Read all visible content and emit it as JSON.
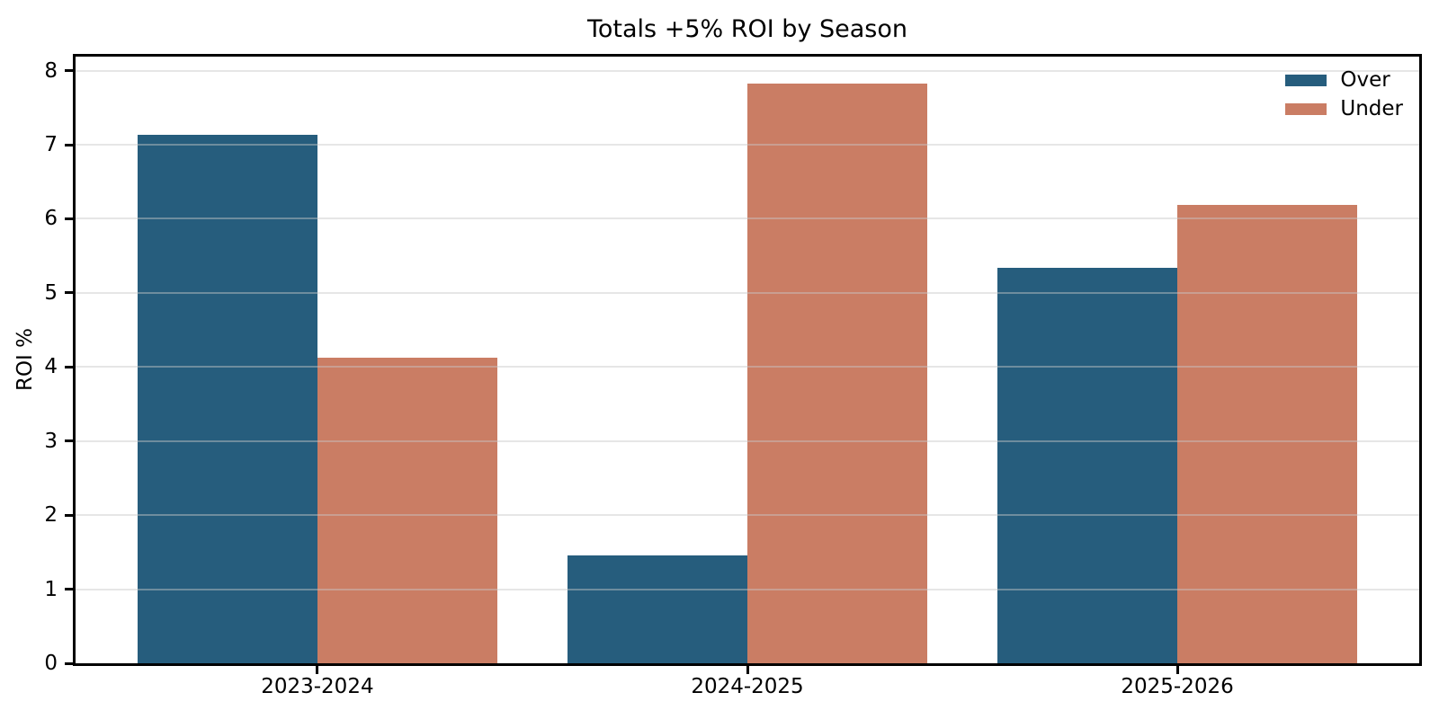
{
  "chart_data": {
    "type": "bar",
    "title": "Totals +5% ROI by Season",
    "xlabel": "",
    "ylabel": "ROI %",
    "categories": [
      "2023-2024",
      "2024-2025",
      "2025-2026"
    ],
    "series": [
      {
        "name": "Over",
        "color": "#265d7d",
        "values": [
          7.13,
          1.45,
          5.34
        ]
      },
      {
        "name": "Under",
        "color": "#ca7d64",
        "values": [
          4.12,
          7.82,
          6.19
        ]
      }
    ],
    "yticks": [
      0,
      1,
      2,
      3,
      4,
      5,
      6,
      7,
      8
    ],
    "ylim": [
      0,
      8.19
    ],
    "grid": true,
    "grid_on_top": true,
    "legend_position": "upper right"
  },
  "colors": {
    "background": "#ffffff",
    "spine": "#000000",
    "grid": "#ececec",
    "text": "#000000"
  }
}
